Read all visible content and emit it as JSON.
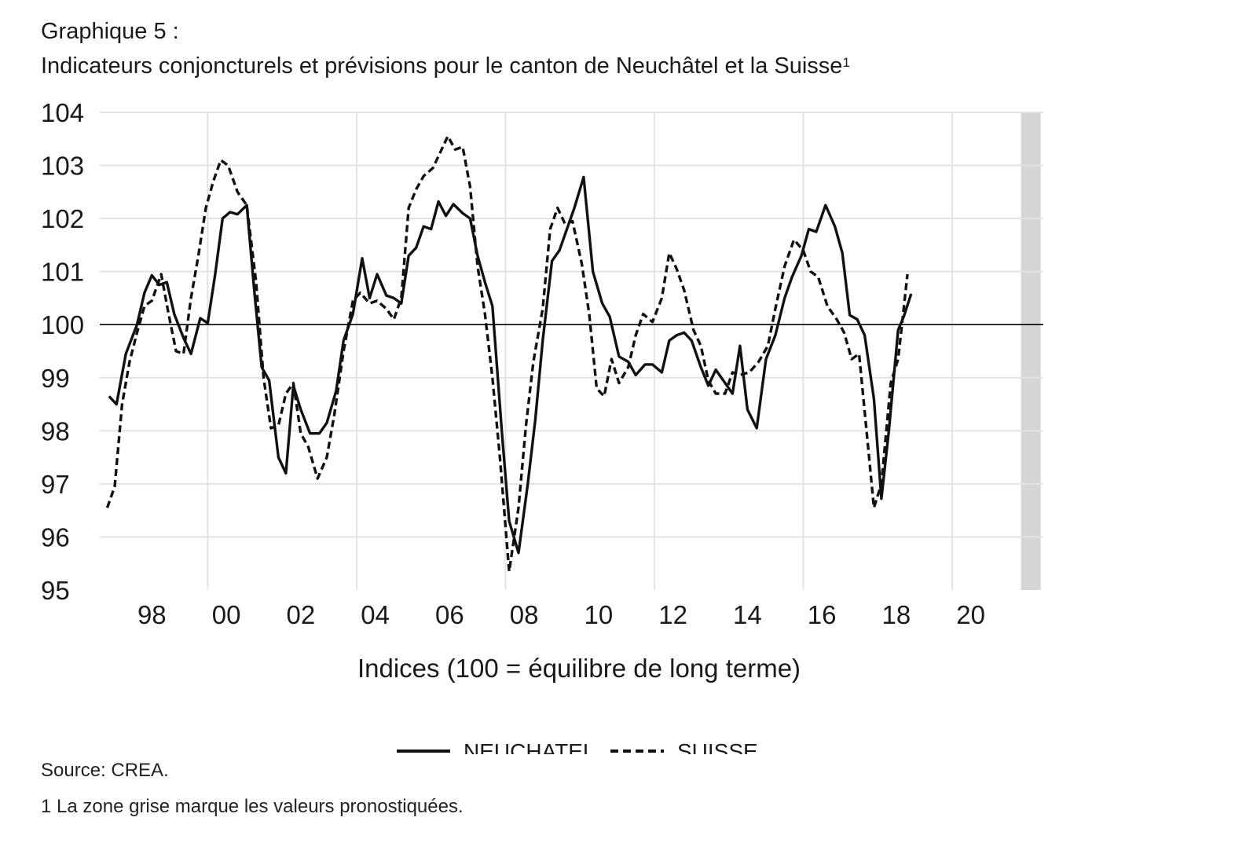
{
  "header": {
    "title": "Graphique 5 :",
    "subtitle": "Indicateurs conjoncturels et prévisions pour le canton de Neuchâtel et la Suisse",
    "subtitle_sup": "1"
  },
  "footer": {
    "source": "Source: CREA.",
    "footnote": "1 La zone grise marque les valeurs pronostiquées."
  },
  "colors": {
    "line": "#111111",
    "grid": "#e3e3e3",
    "forecast_band": "#d6d6d6",
    "baseline": "#000000"
  },
  "chart_data": {
    "type": "line",
    "title": "Graphique 5 :",
    "subtitle": "Indicateurs conjoncturels et prévisions pour le canton de Neuchâtel et la Suisse",
    "xlabel": "Indices (100 = équilibre de long terme)",
    "ylabel": "",
    "ylim": [
      95,
      104
    ],
    "xlim": [
      1996.6,
      2021.95
    ],
    "yticks": [
      "95",
      "96",
      "97",
      "98",
      "99",
      "100",
      "101",
      "102",
      "103",
      "104"
    ],
    "xticks": [
      {
        "x": 1998,
        "label": "98"
      },
      {
        "x": 2000,
        "label": "00"
      },
      {
        "x": 2002,
        "label": "02"
      },
      {
        "x": 2004,
        "label": "04"
      },
      {
        "x": 2006,
        "label": "06"
      },
      {
        "x": 2008,
        "label": "08"
      },
      {
        "x": 2010,
        "label": "10"
      },
      {
        "x": 2012,
        "label": "12"
      },
      {
        "x": 2014,
        "label": "14"
      },
      {
        "x": 2016,
        "label": "16"
      },
      {
        "x": 2018,
        "label": "18"
      },
      {
        "x": 2020,
        "label": "20"
      }
    ],
    "xgrid": [
      1999.5,
      2003.5,
      2007.5,
      2011.5,
      2015.5,
      2019.5
    ],
    "reference_line": 100,
    "forecast_band": [
      2021.35,
      2021.88
    ],
    "grid": true,
    "legend_position": "bottom-center",
    "series": [
      {
        "name": "NEUCHATEL",
        "style": "solid",
        "points": [
          [
            1996.85,
            98.65
          ],
          [
            1997.05,
            98.5
          ],
          [
            1997.3,
            99.45
          ],
          [
            1997.6,
            100.0
          ],
          [
            1997.8,
            100.6
          ],
          [
            1998.0,
            100.93
          ],
          [
            1998.2,
            100.75
          ],
          [
            1998.4,
            100.8
          ],
          [
            1998.6,
            100.2
          ],
          [
            1998.85,
            99.75
          ],
          [
            1999.05,
            99.45
          ],
          [
            1999.3,
            100.12
          ],
          [
            1999.5,
            100.03
          ],
          [
            1999.7,
            100.95
          ],
          [
            1999.9,
            102.0
          ],
          [
            2000.1,
            102.12
          ],
          [
            2000.3,
            102.08
          ],
          [
            2000.55,
            102.25
          ],
          [
            2000.75,
            100.65
          ],
          [
            2000.95,
            99.2
          ],
          [
            2001.15,
            98.95
          ],
          [
            2001.4,
            97.5
          ],
          [
            2001.6,
            97.2
          ],
          [
            2001.8,
            98.85
          ],
          [
            2002.0,
            98.4
          ],
          [
            2002.25,
            97.95
          ],
          [
            2002.5,
            97.95
          ],
          [
            2002.7,
            98.15
          ],
          [
            2002.95,
            98.75
          ],
          [
            2003.15,
            99.7
          ],
          [
            2003.4,
            100.2
          ],
          [
            2003.65,
            101.25
          ],
          [
            2003.85,
            100.5
          ],
          [
            2004.05,
            100.95
          ],
          [
            2004.3,
            100.55
          ],
          [
            2004.5,
            100.5
          ],
          [
            2004.7,
            100.4
          ],
          [
            2004.9,
            101.3
          ],
          [
            2005.1,
            101.45
          ],
          [
            2005.3,
            101.85
          ],
          [
            2005.5,
            101.8
          ],
          [
            2005.7,
            102.32
          ],
          [
            2005.9,
            102.05
          ],
          [
            2006.1,
            102.27
          ],
          [
            2006.35,
            102.1
          ],
          [
            2006.55,
            102.0
          ],
          [
            2006.75,
            101.3
          ],
          [
            2006.95,
            100.8
          ],
          [
            2007.15,
            100.35
          ],
          [
            2007.4,
            98.0
          ],
          [
            2007.6,
            96.3
          ],
          [
            2007.85,
            95.7
          ],
          [
            2008.1,
            97.0
          ],
          [
            2008.3,
            98.2
          ],
          [
            2008.5,
            99.7
          ],
          [
            2008.75,
            101.2
          ],
          [
            2008.95,
            101.4
          ],
          [
            2009.15,
            101.8
          ],
          [
            2009.35,
            102.2
          ],
          [
            2009.6,
            102.78
          ],
          [
            2009.85,
            101.0
          ],
          [
            2010.1,
            100.4
          ],
          [
            2010.3,
            100.15
          ],
          [
            2010.55,
            99.4
          ],
          [
            2010.8,
            99.3
          ],
          [
            2011.0,
            99.05
          ],
          [
            2011.25,
            99.25
          ],
          [
            2011.45,
            99.25
          ],
          [
            2011.7,
            99.1
          ],
          [
            2011.9,
            99.7
          ],
          [
            2012.1,
            99.8
          ],
          [
            2012.3,
            99.85
          ],
          [
            2012.5,
            99.7
          ],
          [
            2012.75,
            99.2
          ],
          [
            2012.95,
            98.85
          ],
          [
            2013.15,
            99.15
          ],
          [
            2013.35,
            98.95
          ],
          [
            2013.6,
            98.7
          ],
          [
            2013.8,
            99.6
          ],
          [
            2014.0,
            98.4
          ],
          [
            2014.25,
            98.05
          ],
          [
            2014.5,
            99.35
          ],
          [
            2014.75,
            99.8
          ],
          [
            2015.0,
            100.5
          ],
          [
            2015.2,
            100.9
          ],
          [
            2015.45,
            101.3
          ],
          [
            2015.65,
            101.8
          ],
          [
            2015.85,
            101.75
          ],
          [
            2016.1,
            102.25
          ],
          [
            2016.35,
            101.85
          ],
          [
            2016.55,
            101.35
          ],
          [
            2016.75,
            100.18
          ],
          [
            2016.95,
            100.1
          ],
          [
            2017.15,
            99.8
          ],
          [
            2017.4,
            98.6
          ],
          [
            2017.6,
            96.72
          ],
          [
            2017.8,
            98.0
          ],
          [
            2018.05,
            99.9
          ],
          [
            2018.2,
            100.15
          ],
          [
            2018.4,
            100.58
          ]
        ]
      },
      {
        "name": "SUISSE",
        "style": "dashed",
        "points": [
          [
            1996.8,
            96.55
          ],
          [
            1997.0,
            96.95
          ],
          [
            1997.2,
            98.5
          ],
          [
            1997.4,
            99.3
          ],
          [
            1997.6,
            99.85
          ],
          [
            1997.8,
            100.35
          ],
          [
            1998.0,
            100.45
          ],
          [
            1998.25,
            100.95
          ],
          [
            1998.45,
            100.2
          ],
          [
            1998.65,
            99.5
          ],
          [
            1998.85,
            99.45
          ],
          [
            1999.05,
            100.5
          ],
          [
            1999.25,
            101.3
          ],
          [
            1999.45,
            102.2
          ],
          [
            1999.65,
            102.7
          ],
          [
            1999.85,
            103.1
          ],
          [
            2000.05,
            103.0
          ],
          [
            2000.3,
            102.5
          ],
          [
            2000.55,
            102.25
          ],
          [
            2000.8,
            100.8
          ],
          [
            2001.0,
            99.0
          ],
          [
            2001.2,
            98.05
          ],
          [
            2001.4,
            98.1
          ],
          [
            2001.6,
            98.7
          ],
          [
            2001.8,
            98.9
          ],
          [
            2002.0,
            97.95
          ],
          [
            2002.2,
            97.7
          ],
          [
            2002.45,
            97.1
          ],
          [
            2002.7,
            97.5
          ],
          [
            2002.9,
            98.3
          ],
          [
            2003.15,
            99.5
          ],
          [
            2003.4,
            100.45
          ],
          [
            2003.6,
            100.6
          ],
          [
            2003.85,
            100.4
          ],
          [
            2004.05,
            100.45
          ],
          [
            2004.3,
            100.3
          ],
          [
            2004.5,
            100.1
          ],
          [
            2004.7,
            100.5
          ],
          [
            2004.9,
            102.2
          ],
          [
            2005.1,
            102.55
          ],
          [
            2005.3,
            102.8
          ],
          [
            2005.55,
            102.95
          ],
          [
            2005.75,
            103.25
          ],
          [
            2005.95,
            103.55
          ],
          [
            2006.15,
            103.3
          ],
          [
            2006.35,
            103.35
          ],
          [
            2006.55,
            102.6
          ],
          [
            2006.75,
            101.1
          ],
          [
            2006.95,
            100.2
          ],
          [
            2007.15,
            99.0
          ],
          [
            2007.35,
            97.5
          ],
          [
            2007.6,
            95.35
          ],
          [
            2007.85,
            96.55
          ],
          [
            2008.05,
            98.1
          ],
          [
            2008.25,
            99.3
          ],
          [
            2008.5,
            100.3
          ],
          [
            2008.7,
            101.8
          ],
          [
            2008.9,
            102.2
          ],
          [
            2009.1,
            101.9
          ],
          [
            2009.3,
            101.95
          ],
          [
            2009.55,
            101.15
          ],
          [
            2009.75,
            100.2
          ],
          [
            2009.95,
            98.8
          ],
          [
            2010.15,
            98.65
          ],
          [
            2010.35,
            99.35
          ],
          [
            2010.55,
            98.9
          ],
          [
            2010.8,
            99.2
          ],
          [
            2011.0,
            99.8
          ],
          [
            2011.2,
            100.2
          ],
          [
            2011.45,
            100.05
          ],
          [
            2011.7,
            100.5
          ],
          [
            2011.9,
            101.35
          ],
          [
            2012.1,
            101.05
          ],
          [
            2012.3,
            100.65
          ],
          [
            2012.55,
            99.9
          ],
          [
            2012.75,
            99.6
          ],
          [
            2012.95,
            98.95
          ],
          [
            2013.15,
            98.7
          ],
          [
            2013.4,
            98.7
          ],
          [
            2013.6,
            99.1
          ],
          [
            2013.8,
            99.05
          ],
          [
            2014.05,
            99.1
          ],
          [
            2014.3,
            99.3
          ],
          [
            2014.55,
            99.6
          ],
          [
            2014.75,
            100.3
          ],
          [
            2015.0,
            101.1
          ],
          [
            2015.25,
            101.6
          ],
          [
            2015.5,
            101.4
          ],
          [
            2015.7,
            101.0
          ],
          [
            2015.9,
            100.9
          ],
          [
            2016.15,
            100.35
          ],
          [
            2016.4,
            100.1
          ],
          [
            2016.6,
            99.85
          ],
          [
            2016.8,
            99.35
          ],
          [
            2017.0,
            99.45
          ],
          [
            2017.2,
            98.0
          ],
          [
            2017.4,
            96.55
          ],
          [
            2017.6,
            97.0
          ],
          [
            2017.85,
            98.9
          ],
          [
            2018.05,
            99.35
          ],
          [
            2018.3,
            100.95
          ]
        ]
      }
    ]
  }
}
